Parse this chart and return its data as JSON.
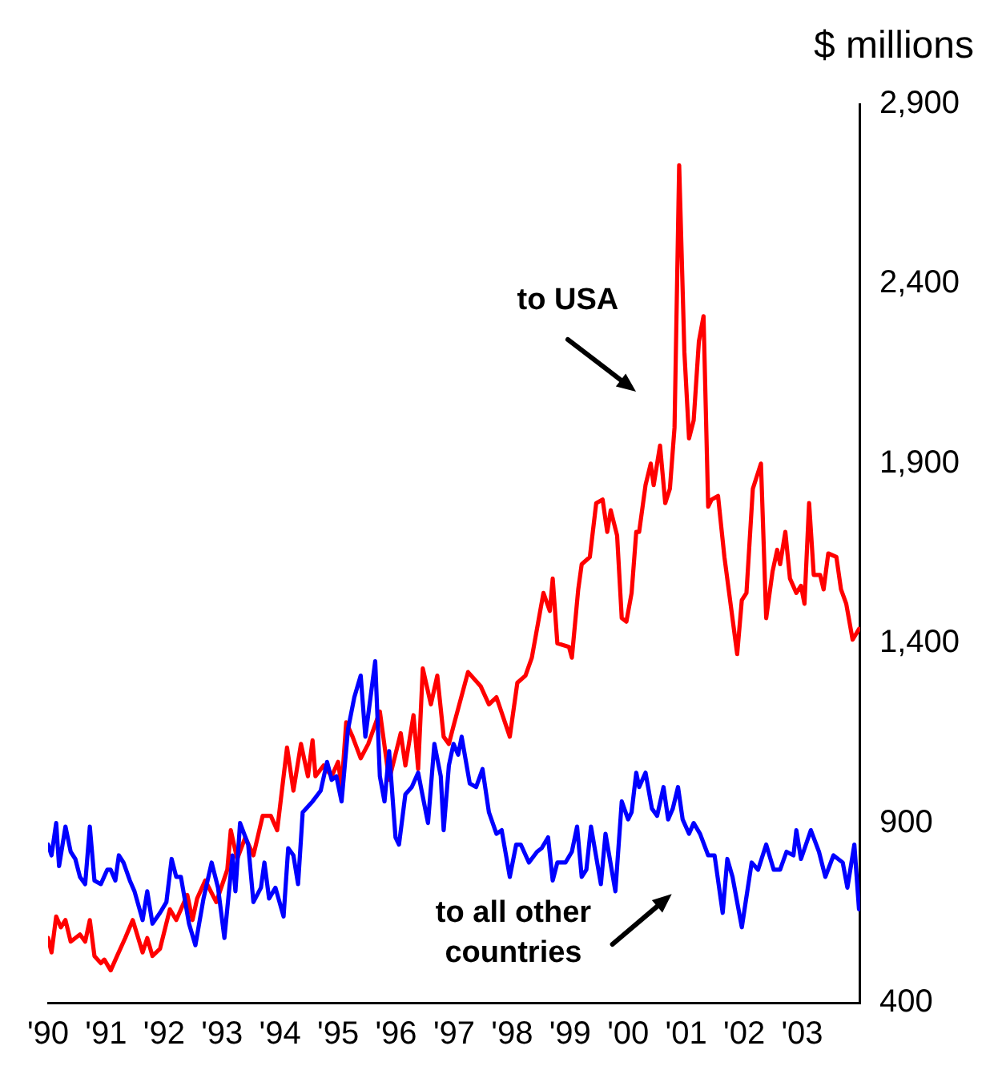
{
  "chart_data": {
    "type": "line",
    "ylabel": "$ millions",
    "xlim": [
      1990,
      2004
    ],
    "xticks": [
      {
        "value": 1990,
        "label": "'90"
      },
      {
        "value": 1991,
        "label": "'91"
      },
      {
        "value": 1992,
        "label": "'92"
      },
      {
        "value": 1993,
        "label": "'93"
      },
      {
        "value": 1994,
        "label": "'94"
      },
      {
        "value": 1995,
        "label": "'95"
      },
      {
        "value": 1996,
        "label": "'96"
      },
      {
        "value": 1997,
        "label": "'97"
      },
      {
        "value": 1998,
        "label": "'98"
      },
      {
        "value": 1999,
        "label": "'99"
      },
      {
        "value": 2000,
        "label": "'00"
      },
      {
        "value": 2001,
        "label": "'01"
      },
      {
        "value": 2002,
        "label": "'02"
      },
      {
        "value": 2003,
        "label": "'03"
      }
    ],
    "ylim": [
      400,
      2900
    ],
    "yticks": [
      {
        "value": 400,
        "label": "400"
      },
      {
        "value": 900,
        "label": "900"
      },
      {
        "value": 1400,
        "label": "1,400"
      },
      {
        "value": 1900,
        "label": "1,900"
      },
      {
        "value": 2400,
        "label": "2,400"
      },
      {
        "value": 2900,
        "label": "2,900"
      }
    ],
    "annotations": [
      "to USA",
      "to all other countries"
    ],
    "series": [
      {
        "color": "#0000ff",
        "x": [
          1990.0,
          1990.06,
          1990.14,
          1990.19,
          1990.3,
          1990.39,
          1990.47,
          1990.55,
          1990.64,
          1990.72,
          1990.8,
          1990.91,
          1991.02,
          1991.08,
          1991.16,
          1991.22,
          1991.3,
          1991.41,
          1991.49,
          1991.63,
          1991.71,
          1991.8,
          1991.93,
          1992.04,
          1992.13,
          1992.21,
          1992.29,
          1992.43,
          1992.54,
          1992.68,
          1992.82,
          1992.93,
          1993.04,
          1993.18,
          1993.23,
          1993.31,
          1993.45,
          1993.54,
          1993.67,
          1993.73,
          1993.81,
          1993.92,
          1994.06,
          1994.14,
          1994.23,
          1994.31,
          1994.39,
          1994.56,
          1994.7,
          1994.81,
          1994.89,
          1994.97,
          1995.06,
          1995.17,
          1995.28,
          1995.39,
          1995.47,
          1995.64,
          1995.72,
          1995.8,
          1995.88,
          1995.99,
          1996.05,
          1996.16,
          1996.27,
          1996.38,
          1996.44,
          1996.55,
          1996.66,
          1996.77,
          1996.82,
          1996.91,
          1996.99,
          1997.07,
          1997.13,
          1997.27,
          1997.38,
          1997.49,
          1997.6,
          1997.73,
          1997.82,
          1997.96,
          1998.07,
          1998.15,
          1998.29,
          1998.43,
          1998.51,
          1998.62,
          1998.7,
          1998.78,
          1998.92,
          1999.03,
          1999.12,
          1999.2,
          1999.28,
          1999.36,
          1999.53,
          1999.61,
          1999.78,
          1999.89,
          2000.0,
          2000.06,
          2000.14,
          2000.19,
          2000.3,
          2000.41,
          2000.5,
          2000.61,
          2000.69,
          2000.77,
          2000.86,
          2000.94,
          2001.05,
          2001.13,
          2001.24,
          2001.38,
          2001.49,
          2001.63,
          2001.71,
          2001.8,
          2001.96,
          2002.13,
          2002.24,
          2002.38,
          2002.51,
          2002.62,
          2002.73,
          2002.85,
          2002.9,
          2002.98,
          2003.15,
          2003.29,
          2003.4,
          2003.54,
          2003.7,
          2003.78,
          2003.9,
          2003.98
        ],
        "values": [
          840,
          810,
          900,
          780,
          890,
          820,
          800,
          750,
          730,
          890,
          740,
          730,
          770,
          770,
          740,
          810,
          790,
          740,
          710,
          630,
          710,
          620,
          650,
          680,
          800,
          750,
          750,
          620,
          560,
          690,
          790,
          720,
          580,
          810,
          710,
          900,
          840,
          680,
          720,
          790,
          690,
          720,
          640,
          830,
          810,
          730,
          930,
          960,
          990,
          1070,
          1020,
          1030,
          960,
          1160,
          1250,
          1310,
          1140,
          1350,
          1030,
          960,
          1100,
          860,
          840,
          980,
          1000,
          1040,
          990,
          900,
          1120,
          1030,
          880,
          1060,
          1120,
          1090,
          1140,
          1010,
          1000,
          1050,
          930,
          870,
          880,
          750,
          840,
          840,
          790,
          820,
          830,
          860,
          740,
          790,
          790,
          820,
          890,
          750,
          770,
          890,
          730,
          870,
          710,
          960,
          910,
          930,
          1040,
          1000,
          1040,
          940,
          920,
          1000,
          910,
          940,
          1000,
          910,
          870,
          900,
          870,
          810,
          810,
          650,
          800,
          750,
          610,
          790,
          770,
          840,
          770,
          770,
          820,
          810,
          880,
          800,
          880,
          820,
          750,
          810,
          790,
          720,
          840,
          660
        ]
      },
      {
        "color": "#ff0000",
        "x": [
          1990.0,
          1990.06,
          1990.14,
          1990.22,
          1990.3,
          1990.39,
          1990.55,
          1990.64,
          1990.72,
          1990.8,
          1990.91,
          1990.97,
          1991.08,
          1991.19,
          1991.33,
          1991.46,
          1991.63,
          1991.71,
          1991.8,
          1991.93,
          1992.1,
          1992.21,
          1992.4,
          1992.49,
          1992.57,
          1992.71,
          1992.9,
          1993.09,
          1993.15,
          1993.26,
          1993.4,
          1993.54,
          1993.7,
          1993.84,
          1993.95,
          1994.12,
          1994.23,
          1994.36,
          1994.48,
          1994.56,
          1994.61,
          1994.75,
          1994.89,
          1995.0,
          1995.06,
          1995.14,
          1995.25,
          1995.39,
          1995.52,
          1995.72,
          1995.88,
          1996.08,
          1996.16,
          1996.3,
          1996.38,
          1996.46,
          1996.6,
          1996.71,
          1996.82,
          1996.91,
          1996.99,
          1997.24,
          1997.46,
          1997.6,
          1997.73,
          1997.96,
          1998.09,
          1998.23,
          1998.34,
          1998.54,
          1998.65,
          1998.7,
          1998.78,
          1998.98,
          1999.03,
          1999.14,
          1999.2,
          1999.34,
          1999.45,
          1999.56,
          1999.64,
          1999.7,
          1999.81,
          1999.89,
          1999.97,
          2000.06,
          2000.14,
          2000.19,
          2000.3,
          2000.39,
          2000.44,
          2000.55,
          2000.64,
          2000.72,
          2000.8,
          2000.88,
          2000.97,
          2001.05,
          2001.13,
          2001.22,
          2001.3,
          2001.38,
          2001.44,
          2001.55,
          2001.66,
          2001.88,
          2001.96,
          2002.04,
          2002.15,
          2002.29,
          2002.38,
          2002.49,
          2002.57,
          2002.62,
          2002.71,
          2002.79,
          2002.9,
          2002.98,
          2003.04,
          2003.12,
          2003.2,
          2003.31,
          2003.37,
          2003.45,
          2003.59,
          2003.67,
          2003.76,
          2003.87,
          2003.98
        ],
        "values": [
          580,
          540,
          640,
          610,
          630,
          570,
          590,
          570,
          630,
          530,
          510,
          520,
          490,
          530,
          580,
          630,
          540,
          580,
          530,
          550,
          660,
          630,
          700,
          630,
          690,
          740,
          680,
          770,
          880,
          800,
          860,
          810,
          920,
          920,
          880,
          1110,
          990,
          1120,
          1030,
          1130,
          1030,
          1060,
          1030,
          1070,
          1000,
          1180,
          1140,
          1080,
          1120,
          1210,
          1020,
          1150,
          1060,
          1200,
          1050,
          1330,
          1230,
          1310,
          1140,
          1120,
          1170,
          1320,
          1280,
          1230,
          1250,
          1140,
          1290,
          1310,
          1360,
          1540,
          1490,
          1580,
          1400,
          1390,
          1360,
          1550,
          1620,
          1640,
          1790,
          1800,
          1710,
          1770,
          1700,
          1470,
          1460,
          1540,
          1710,
          1710,
          1840,
          1900,
          1840,
          1950,
          1790,
          1830,
          2000,
          2730,
          2210,
          1970,
          2020,
          2240,
          2310,
          1780,
          1800,
          1810,
          1640,
          1370,
          1520,
          1540,
          1830,
          1900,
          1470,
          1600,
          1660,
          1620,
          1710,
          1580,
          1540,
          1560,
          1510,
          1790,
          1590,
          1590,
          1550,
          1650,
          1640,
          1550,
          1510,
          1410,
          1440
        ]
      }
    ]
  }
}
